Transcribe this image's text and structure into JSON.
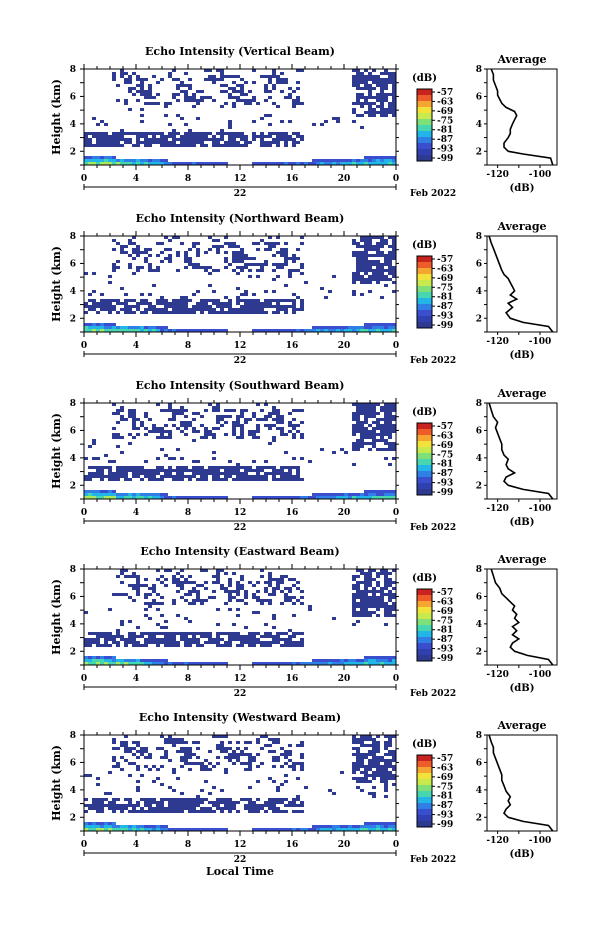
{
  "figure": {
    "xlabel": "Local Time",
    "date_label": "22",
    "month_year": "Feb 2022"
  },
  "chart_data": [
    {
      "type": "heatmap",
      "title": "Echo Intensity (Vertical Beam)",
      "ylabel": "Height (km)",
      "x_ticks": [
        "0",
        "4",
        "8",
        "12",
        "16",
        "20",
        "0"
      ],
      "xlim": [
        0,
        24
      ],
      "y_ticks": [
        "2",
        "4",
        "6",
        "8"
      ],
      "ylim": [
        1,
        8
      ],
      "colorbar": {
        "unit": "(dB)",
        "labels": [
          "-57",
          "-63",
          "-69",
          "-75",
          "-81",
          "-87",
          "-93",
          "-99"
        ]
      },
      "profile": {
        "title": "Average",
        "xlabel": "(dB)",
        "x_ticks": [
          "-120",
          "-100"
        ],
        "xlim": [
          -125,
          -92
        ],
        "y": [
          1.0,
          1.5,
          1.8,
          2.0,
          2.3,
          2.6,
          2.8,
          3.0,
          3.3,
          3.6,
          4.0,
          4.3,
          4.6,
          4.9,
          5.2,
          5.5,
          5.8,
          6.1,
          6.4,
          6.8,
          7.2,
          7.6,
          8.0
        ],
        "values": [
          -94,
          -95,
          -108,
          -115,
          -117,
          -117,
          -116,
          -115,
          -114,
          -114,
          -113,
          -112,
          -111,
          -112,
          -116,
          -118,
          -119,
          -120,
          -120,
          -121,
          -122,
          -122,
          -123
        ]
      }
    },
    {
      "type": "heatmap",
      "title": "Echo Intensity (Northward Beam)",
      "ylabel": "Height (km)",
      "x_ticks": [
        "0",
        "4",
        "8",
        "12",
        "16",
        "20",
        "0"
      ],
      "xlim": [
        0,
        24
      ],
      "y_ticks": [
        "2",
        "4",
        "6",
        "8"
      ],
      "ylim": [
        1,
        8
      ],
      "colorbar": {
        "unit": "(dB)",
        "labels": [
          "-57",
          "-63",
          "-69",
          "-75",
          "-81",
          "-87",
          "-93",
          "-99"
        ]
      },
      "profile": {
        "title": "Average",
        "xlabel": "(dB)",
        "x_ticks": [
          "-120",
          "-100"
        ],
        "xlim": [
          -125,
          -92
        ],
        "y": [
          1.0,
          1.4,
          1.7,
          2.0,
          2.4,
          2.8,
          3.1,
          3.4,
          3.7,
          4.0,
          4.3,
          4.6,
          4.9,
          5.2,
          5.5,
          5.9,
          6.3,
          6.7,
          7.1,
          7.5,
          8.0
        ],
        "values": [
          -94,
          -96,
          -108,
          -114,
          -116,
          -113,
          -115,
          -111,
          -114,
          -112,
          -113,
          -114,
          -115,
          -117,
          -118,
          -119,
          -120,
          -121,
          -122,
          -123,
          -124
        ]
      }
    },
    {
      "type": "heatmap",
      "title": "Echo Intensity (Southward Beam)",
      "ylabel": "Height (km)",
      "x_ticks": [
        "0",
        "4",
        "8",
        "12",
        "16",
        "20",
        "0"
      ],
      "xlim": [
        0,
        24
      ],
      "y_ticks": [
        "2",
        "4",
        "6",
        "8"
      ],
      "ylim": [
        1,
        8
      ],
      "colorbar": {
        "unit": "(dB)",
        "labels": [
          "-57",
          "-63",
          "-69",
          "-75",
          "-81",
          "-87",
          "-93",
          "-99"
        ]
      },
      "profile": {
        "title": "Average",
        "xlabel": "(dB)",
        "x_ticks": [
          "-120",
          "-100"
        ],
        "xlim": [
          -125,
          -92
        ],
        "y": [
          1.0,
          1.4,
          1.7,
          2.0,
          2.3,
          2.6,
          2.9,
          3.2,
          3.5,
          3.9,
          4.2,
          4.6,
          5.0,
          5.4,
          5.8,
          6.2,
          6.6,
          7.0,
          7.5,
          8.0
        ],
        "values": [
          -94,
          -96,
          -108,
          -115,
          -117,
          -116,
          -112,
          -115,
          -116,
          -115,
          -117,
          -118,
          -118,
          -119,
          -120,
          -121,
          -120,
          -122,
          -123,
          -124
        ]
      }
    },
    {
      "type": "heatmap",
      "title": "Echo Intensity (Eastward Beam)",
      "ylabel": "Height (km)",
      "x_ticks": [
        "0",
        "4",
        "8",
        "12",
        "16",
        "20",
        "0"
      ],
      "xlim": [
        0,
        24
      ],
      "y_ticks": [
        "2",
        "4",
        "6",
        "8"
      ],
      "ylim": [
        1,
        8
      ],
      "colorbar": {
        "unit": "(dB)",
        "labels": [
          "-57",
          "-63",
          "-69",
          "-75",
          "-81",
          "-87",
          "-93",
          "-99"
        ]
      },
      "profile": {
        "title": "Average",
        "xlabel": "(dB)",
        "x_ticks": [
          "-120",
          "-100"
        ],
        "xlim": [
          -125,
          -92
        ],
        "y": [
          1.0,
          1.4,
          1.7,
          2.0,
          2.3,
          2.6,
          2.9,
          3.2,
          3.5,
          3.8,
          4.1,
          4.4,
          4.7,
          5.0,
          5.3,
          5.6,
          5.9,
          6.2,
          6.6,
          7.0,
          7.5,
          8.0
        ],
        "values": [
          -94,
          -96,
          -106,
          -112,
          -114,
          -113,
          -110,
          -113,
          -111,
          -113,
          -110,
          -112,
          -111,
          -113,
          -112,
          -114,
          -116,
          -118,
          -119,
          -121,
          -122,
          -123
        ]
      }
    },
    {
      "type": "heatmap",
      "title": "Echo Intensity (Westward Beam)",
      "ylabel": "Height (km)",
      "x_ticks": [
        "0",
        "4",
        "8",
        "12",
        "16",
        "20",
        "0"
      ],
      "xlim": [
        0,
        24
      ],
      "y_ticks": [
        "2",
        "4",
        "6",
        "8"
      ],
      "ylim": [
        1,
        8
      ],
      "colorbar": {
        "unit": "(dB)",
        "labels": [
          "-57",
          "-63",
          "-69",
          "-75",
          "-81",
          "-87",
          "-93",
          "-99"
        ]
      },
      "profile": {
        "title": "Average",
        "xlabel": "(dB)",
        "x_ticks": [
          "-120",
          "-100"
        ],
        "xlim": [
          -125,
          -92
        ],
        "y": [
          1.0,
          1.4,
          1.7,
          2.0,
          2.3,
          2.6,
          2.9,
          3.2,
          3.5,
          3.9,
          4.3,
          4.7,
          5.1,
          5.5,
          5.9,
          6.3,
          6.7,
          7.1,
          7.5,
          8.0
        ],
        "values": [
          -94,
          -96,
          -108,
          -115,
          -117,
          -116,
          -114,
          -115,
          -114,
          -116,
          -117,
          -118,
          -118,
          -119,
          -120,
          -121,
          -122,
          -122,
          -123,
          -124
        ]
      }
    }
  ]
}
